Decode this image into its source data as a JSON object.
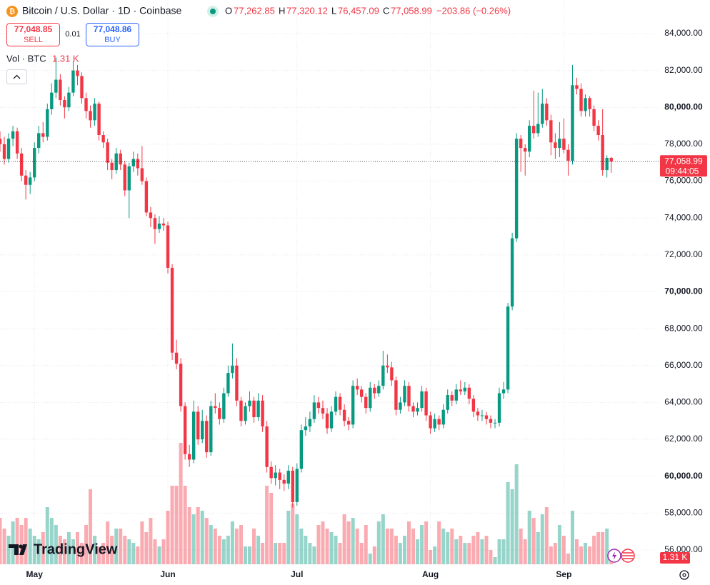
{
  "chart_data": {
    "type": "candlestick",
    "title": "Bitcoin / U.S. Dollar · 1D · Coinbase",
    "ohlc_legend": {
      "o_label": "O",
      "o": "77,262.85",
      "h_label": "H",
      "h": "77,320.12",
      "l_label": "L",
      "l": "76,457.09",
      "c_label": "C",
      "c": "77,058.99",
      "change": "−203.86 (−0.26%)"
    },
    "trade": {
      "sell_price": "77,048.85",
      "sell": "SELL",
      "spread": "0.01",
      "buy_price": "77,048.86",
      "buy": "BUY"
    },
    "volume_legend": "Vol · BTC",
    "last_price_label": "77,058.99",
    "countdown": "09:44:05",
    "brand": "TradingView",
    "up_color": "#089981",
    "down_color": "#f23645",
    "grid": true,
    "ylim": [
      55225,
      85820
    ],
    "yticks": [
      {
        "value": 56000,
        "label": "56,000.00"
      },
      {
        "value": 58000,
        "label": "58,000.00"
      },
      {
        "value": 60000,
        "label": "60,000.00"
      },
      {
        "value": 62000,
        "label": "62,000.00"
      },
      {
        "value": 64000,
        "label": "64,000.00"
      },
      {
        "value": 66000,
        "label": "66,000.00"
      },
      {
        "value": 68000,
        "label": "68,000.00"
      },
      {
        "value": 70000,
        "label": "70,000.00"
      },
      {
        "value": 72000,
        "label": "72,000.00"
      },
      {
        "value": 74000,
        "label": "74,000.00"
      },
      {
        "value": 76000,
        "label": "76,000.00"
      },
      {
        "value": 78000,
        "label": "78,000.00"
      },
      {
        "value": 80000,
        "label": "80,000.00"
      },
      {
        "value": 82000,
        "label": "82,000.00"
      },
      {
        "value": 84000,
        "label": "84,000.00"
      }
    ],
    "xlim": [
      0,
      153
    ],
    "xticks": [
      {
        "value": 8,
        "label": "May"
      },
      {
        "value": 39,
        "label": "Jun"
      },
      {
        "value": 69,
        "label": "Jul"
      },
      {
        "value": 100,
        "label": "Aug"
      },
      {
        "value": 131,
        "label": "Sep"
      }
    ],
    "last_price": 77058.99,
    "candles": [
      [
        78300,
        78700,
        77600,
        78000
      ],
      [
        78000,
        78400,
        76900,
        77200
      ],
      [
        77200,
        78600,
        77000,
        78300
      ],
      [
        78300,
        79000,
        77900,
        78700
      ],
      [
        78700,
        78900,
        77200,
        77500
      ],
      [
        77500,
        77800,
        76000,
        76300
      ],
      [
        76300,
        76600,
        75000,
        75800
      ],
      [
        75800,
        76500,
        75300,
        76200
      ],
      [
        76200,
        78100,
        76000,
        77800
      ],
      [
        77800,
        79000,
        77500,
        78600
      ],
      [
        78600,
        79200,
        78100,
        78400
      ],
      [
        78400,
        80200,
        78200,
        79900
      ],
      [
        79900,
        81300,
        79600,
        80800
      ],
      [
        80800,
        82700,
        80500,
        81500
      ],
      [
        81500,
        81800,
        80100,
        80400
      ],
      [
        80400,
        80600,
        79400,
        80000
      ],
      [
        80000,
        81100,
        79800,
        80800
      ],
      [
        80800,
        82500,
        80600,
        82000
      ],
      [
        82000,
        82300,
        81200,
        81700
      ],
      [
        81700,
        81900,
        80200,
        80500
      ],
      [
        80500,
        80800,
        79400,
        79800
      ],
      [
        79800,
        80100,
        78900,
        79300
      ],
      [
        79300,
        80500,
        79000,
        80200
      ],
      [
        80200,
        80300,
        78200,
        78500
      ],
      [
        78500,
        78700,
        77800,
        78100
      ],
      [
        78100,
        78300,
        76600,
        77000
      ],
      [
        77000,
        77200,
        76100,
        76600
      ],
      [
        76600,
        77800,
        76400,
        77500
      ],
      [
        77500,
        77700,
        76600,
        76900
      ],
      [
        76900,
        77100,
        75200,
        75500
      ],
      [
        75500,
        77000,
        74000,
        76800
      ],
      [
        76800,
        77600,
        76500,
        77200
      ],
      [
        77200,
        77500,
        76300,
        76700
      ],
      [
        76700,
        77900,
        75800,
        76000
      ],
      [
        76000,
        76200,
        74100,
        74300
      ],
      [
        74300,
        74600,
        73500,
        74000
      ],
      [
        74000,
        74200,
        72600,
        73400
      ],
      [
        73400,
        74100,
        73200,
        73700
      ],
      [
        73700,
        74000,
        73300,
        73600
      ],
      [
        73600,
        73800,
        71000,
        71300
      ],
      [
        71300,
        71500,
        66300,
        66700
      ],
      [
        66700,
        67400,
        65800,
        66100
      ],
      [
        66100,
        66400,
        63500,
        63800
      ],
      [
        63800,
        64000,
        60900,
        61200
      ],
      [
        61200,
        61700,
        60500,
        60900
      ],
      [
        60900,
        64100,
        60700,
        63500
      ],
      [
        63500,
        63800,
        61700,
        62000
      ],
      [
        62000,
        63600,
        61800,
        63000
      ],
      [
        63000,
        63300,
        61000,
        61300
      ],
      [
        61300,
        64100,
        61100,
        63800
      ],
      [
        63800,
        64500,
        63400,
        63700
      ],
      [
        63700,
        64000,
        62800,
        63100
      ],
      [
        63100,
        64800,
        62900,
        64500
      ],
      [
        64500,
        66000,
        64300,
        65600
      ],
      [
        65600,
        67200,
        65300,
        66000
      ],
      [
        66000,
        66400,
        63800,
        64100
      ],
      [
        64100,
        64300,
        62700,
        63000
      ],
      [
        63000,
        64000,
        62800,
        63800
      ],
      [
        63800,
        64600,
        63500,
        64100
      ],
      [
        64100,
        64300,
        62900,
        63200
      ],
      [
        63200,
        64500,
        63000,
        64100
      ],
      [
        64100,
        64400,
        62400,
        62700
      ],
      [
        62700,
        63000,
        60200,
        60500
      ],
      [
        60500,
        60800,
        59600,
        59900
      ],
      [
        59900,
        60600,
        59500,
        60200
      ],
      [
        60200,
        60400,
        59300,
        59800
      ],
      [
        59800,
        60100,
        59200,
        59600
      ],
      [
        59600,
        60600,
        59300,
        60300
      ],
      [
        60300,
        60500,
        58300,
        58600
      ],
      [
        58600,
        60700,
        58400,
        60400
      ],
      [
        60400,
        62800,
        60200,
        62500
      ],
      [
        62500,
        63200,
        62200,
        62700
      ],
      [
        62700,
        63500,
        62400,
        63100
      ],
      [
        63100,
        64400,
        62900,
        64000
      ],
      [
        64000,
        64300,
        63400,
        63700
      ],
      [
        63700,
        64100,
        63100,
        63400
      ],
      [
        63400,
        63700,
        62300,
        62600
      ],
      [
        62600,
        63800,
        62400,
        63500
      ],
      [
        63500,
        64600,
        63300,
        64300
      ],
      [
        64300,
        64500,
        63300,
        63600
      ],
      [
        63600,
        63900,
        62700,
        63000
      ],
      [
        63000,
        63200,
        62500,
        62800
      ],
      [
        62800,
        65200,
        62600,
        64900
      ],
      [
        64900,
        65300,
        64400,
        64700
      ],
      [
        64700,
        64900,
        64000,
        64300
      ],
      [
        64300,
        64500,
        63400,
        63700
      ],
      [
        63700,
        65100,
        63500,
        64800
      ],
      [
        64800,
        65000,
        64200,
        64500
      ],
      [
        64500,
        65200,
        64300,
        64900
      ],
      [
        64900,
        66800,
        64700,
        66000
      ],
      [
        66000,
        66600,
        65600,
        65900
      ],
      [
        65900,
        66200,
        64900,
        65200
      ],
      [
        65200,
        65400,
        63300,
        63600
      ],
      [
        63600,
        64300,
        63400,
        64000
      ],
      [
        64000,
        65200,
        63800,
        64900
      ],
      [
        64900,
        65100,
        63500,
        63800
      ],
      [
        63800,
        64000,
        63200,
        63500
      ],
      [
        63500,
        64000,
        63300,
        63700
      ],
      [
        63700,
        64900,
        63500,
        64600
      ],
      [
        64600,
        64800,
        63000,
        63300
      ],
      [
        63300,
        63500,
        62300,
        62600
      ],
      [
        62600,
        63400,
        62400,
        63100
      ],
      [
        63100,
        63300,
        62500,
        62800
      ],
      [
        62800,
        63900,
        62600,
        63600
      ],
      [
        63600,
        64700,
        63400,
        64400
      ],
      [
        64400,
        64600,
        63800,
        64100
      ],
      [
        64100,
        65000,
        63900,
        64700
      ],
      [
        64700,
        65200,
        64400,
        64600
      ],
      [
        64600,
        65100,
        64400,
        64800
      ],
      [
        64800,
        65000,
        63900,
        64200
      ],
      [
        64200,
        64400,
        63200,
        63500
      ],
      [
        63500,
        63700,
        63000,
        63300
      ],
      [
        63300,
        63600,
        63000,
        63300
      ],
      [
        63300,
        63500,
        62800,
        63100
      ],
      [
        63100,
        63300,
        62600,
        62900
      ],
      [
        62900,
        63100,
        62600,
        62900
      ],
      [
        62900,
        64800,
        62700,
        64500
      ],
      [
        64500,
        65100,
        64200,
        64700
      ],
      [
        64700,
        69400,
        64500,
        69200
      ],
      [
        69200,
        73200,
        69000,
        72900
      ],
      [
        72900,
        78600,
        72700,
        78300
      ],
      [
        78300,
        78500,
        76500,
        77800
      ],
      [
        77800,
        78000,
        76300,
        77600
      ],
      [
        77600,
        79300,
        77300,
        79000
      ],
      [
        79000,
        80900,
        78300,
        78600
      ],
      [
        78600,
        80800,
        78400,
        79100
      ],
      [
        79100,
        81000,
        78900,
        80200
      ],
      [
        80200,
        80500,
        79000,
        79300
      ],
      [
        79300,
        79600,
        77400,
        78100
      ],
      [
        78100,
        78600,
        77200,
        77800
      ],
      [
        77800,
        79200,
        77300,
        78300
      ],
      [
        78300,
        79400,
        77500,
        77700
      ],
      [
        77700,
        78000,
        76300,
        77100
      ],
      [
        77100,
        82300,
        76900,
        81200
      ],
      [
        81200,
        81600,
        80700,
        81000
      ],
      [
        81000,
        81300,
        79500,
        79800
      ],
      [
        79800,
        80700,
        79500,
        80500
      ],
      [
        80500,
        80600,
        79500,
        79900
      ],
      [
        79900,
        80100,
        78700,
        79000
      ],
      [
        79000,
        79300,
        78200,
        78500
      ],
      [
        78500,
        79900,
        76300,
        76600
      ],
      [
        76600,
        77400,
        76200,
        77262.85
      ],
      [
        77262.85,
        77320.12,
        76457.09,
        77058.99
      ]
    ],
    "volume": {
      "ylim": [
        0,
        24000
      ],
      "values": [
        6500,
        5000,
        4000,
        6000,
        6500,
        5500,
        6500,
        5000,
        4000,
        3500,
        4500,
        8000,
        6500,
        5500,
        4000,
        3500,
        4500,
        3500,
        4500,
        3000,
        5500,
        10500,
        4000,
        2500,
        3000,
        6000,
        4000,
        5000,
        5000,
        4000,
        3500,
        3000,
        2500,
        6000,
        4500,
        6500,
        3500,
        2500,
        3500,
        7500,
        11000,
        11000,
        17000,
        11000,
        8000,
        7000,
        8000,
        7500,
        6500,
        5500,
        5000,
        4000,
        3500,
        4000,
        6000,
        5000,
        5500,
        2500,
        2500,
        5000,
        4000,
        3000,
        11000,
        10000,
        3000,
        3000,
        3000,
        7500,
        8500,
        7000,
        5000,
        4000,
        3000,
        2500,
        5500,
        6000,
        5000,
        4500,
        4000,
        3000,
        7000,
        6000,
        6500,
        5000,
        3000,
        5500,
        1500,
        2500,
        6000,
        7000,
        5000,
        5000,
        4000,
        3000,
        4000,
        6000,
        5000,
        3500,
        5500,
        6000,
        2000,
        2500,
        6000,
        5000,
        4500,
        5000,
        3500,
        4000,
        3000,
        3000,
        4000,
        4500,
        3500,
        4000,
        2000,
        1000,
        3500,
        3500,
        11500,
        10500,
        14000,
        5000,
        3500,
        7500,
        6500,
        4500,
        7000,
        8000,
        2500,
        3000,
        5500,
        4000,
        1500,
        7500,
        3500,
        2500,
        3000,
        2500,
        4000,
        4500,
        4500,
        5000,
        1310
      ],
      "last_label": "1.31 K"
    }
  }
}
